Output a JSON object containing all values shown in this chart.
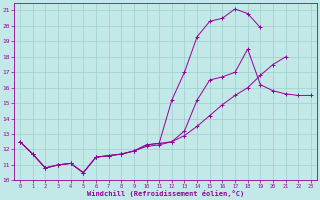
{
  "xlabel": "Windchill (Refroidissement éolien,°C)",
  "background_color": "#c2e8e8",
  "line_color": "#990099",
  "xlim": [
    -0.5,
    23.5
  ],
  "ylim": [
    10.0,
    21.5
  ],
  "yticks": [
    10,
    11,
    12,
    13,
    14,
    15,
    16,
    17,
    18,
    19,
    20,
    21
  ],
  "xticks": [
    0,
    1,
    2,
    3,
    4,
    5,
    6,
    7,
    8,
    9,
    10,
    11,
    12,
    13,
    14,
    15,
    16,
    17,
    18,
    19,
    20,
    21,
    22,
    23
  ],
  "series": [
    {
      "x": [
        0,
        1,
        2,
        3,
        4,
        5,
        6,
        7,
        8,
        9,
        10,
        11,
        12,
        13,
        14,
        15,
        16,
        17,
        18,
        19
      ],
      "y": [
        12.5,
        11.7,
        10.8,
        11.0,
        11.1,
        10.5,
        11.5,
        11.6,
        11.7,
        11.9,
        12.3,
        12.4,
        15.2,
        17.0,
        19.3,
        20.3,
        20.5,
        21.1,
        20.8,
        19.9
      ]
    },
    {
      "x": [
        0,
        1,
        2,
        3,
        4,
        5,
        6,
        7,
        8,
        9,
        10,
        11,
        12,
        13,
        14,
        15,
        16,
        17,
        18,
        19,
        20,
        21,
        22,
        23
      ],
      "y": [
        12.5,
        11.7,
        10.8,
        11.0,
        11.1,
        10.5,
        11.5,
        11.6,
        11.7,
        11.9,
        12.3,
        12.4,
        12.5,
        13.2,
        15.2,
        16.5,
        16.7,
        17.0,
        18.5,
        16.2,
        15.8,
        15.6,
        15.5,
        15.5
      ]
    },
    {
      "x": [
        0,
        1,
        2,
        3,
        4,
        5,
        6,
        7,
        8,
        9,
        10,
        11,
        12,
        13,
        14,
        15,
        16,
        17,
        18,
        19,
        20,
        21,
        22,
        23
      ],
      "y": [
        12.5,
        11.7,
        10.8,
        11.0,
        11.1,
        10.5,
        11.5,
        11.6,
        11.7,
        11.9,
        12.2,
        12.3,
        12.5,
        12.9,
        13.5,
        14.2,
        14.9,
        15.5,
        16.0,
        16.8,
        17.5,
        18.0,
        null,
        null
      ]
    }
  ]
}
